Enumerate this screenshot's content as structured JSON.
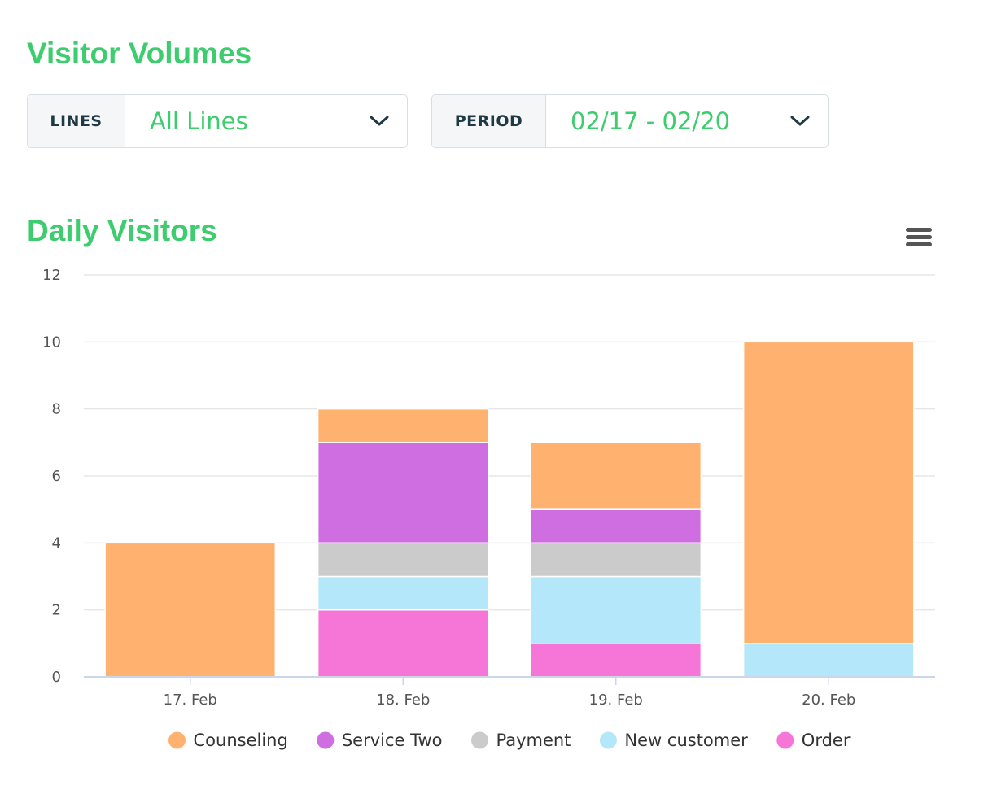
{
  "headings": {
    "visitor_volumes": "Visitor Volumes",
    "daily_visitors": "Daily Visitors"
  },
  "filters": {
    "lines": {
      "label": "LINES",
      "value": "All Lines",
      "icon": "chevron-down-icon"
    },
    "period": {
      "label": "PERIOD",
      "value": "02/17 - 02/20",
      "icon": "chevron-down-icon"
    }
  },
  "chart_menu": {
    "icon": "hamburger-menu-icon"
  },
  "chart_data": {
    "type": "bar",
    "stacked": true,
    "categories": [
      "17. Feb",
      "18. Feb",
      "19. Feb",
      "20. Feb"
    ],
    "series": [
      {
        "name": "Counseling",
        "color": "#ffb26f",
        "values": [
          4,
          1,
          2,
          9
        ]
      },
      {
        "name": "Service Two",
        "color": "#cf6ee0",
        "values": [
          0,
          3,
          1,
          0
        ]
      },
      {
        "name": "Payment",
        "color": "#cbcbcb",
        "values": [
          0,
          1,
          1,
          0
        ]
      },
      {
        "name": "New customer",
        "color": "#b3e7f9",
        "values": [
          0,
          1,
          2,
          1
        ]
      },
      {
        "name": "Order",
        "color": "#f676d8",
        "values": [
          0,
          2,
          1,
          0
        ]
      }
    ],
    "ylim": [
      0,
      12
    ],
    "yticks": [
      0,
      2,
      4,
      6,
      8,
      10,
      12
    ],
    "grid": true,
    "legend_position": "bottom-center"
  }
}
